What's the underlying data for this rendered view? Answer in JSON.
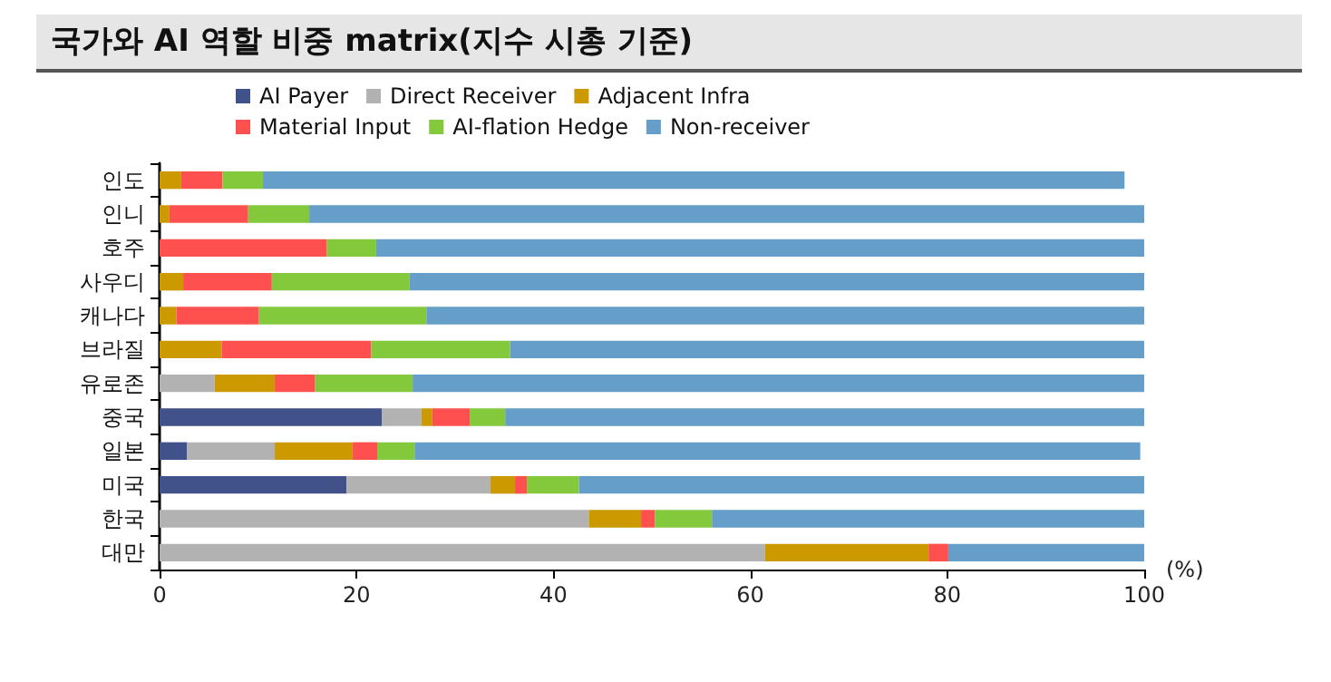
{
  "chart_data": {
    "type": "bar",
    "title": "국가와 AI 역할 비중 matrix(지수 시총 기준)",
    "xlabel": "(%)",
    "orientation": "horizontal",
    "stacked": true,
    "legend": "top",
    "grid": false,
    "categories": [
      "인도",
      "인니",
      "호주",
      "사우디",
      "캐나다",
      "브라질",
      "유로존",
      "중국",
      "일본",
      "미국",
      "한국",
      "대만"
    ],
    "xlim": [
      0,
      100
    ],
    "xticks": [
      0,
      20,
      40,
      60,
      80,
      100
    ],
    "series": [
      {
        "name": "AI Payer",
        "color": "#41528a",
        "values": [
          0,
          0,
          0,
          0,
          0,
          0,
          0,
          22.6,
          2.8,
          19.0,
          0,
          0
        ]
      },
      {
        "name": "Direct Receiver",
        "color": "#b2b2b2",
        "values": [
          0,
          0,
          0,
          0,
          0,
          0,
          5.6,
          4.0,
          8.9,
          14.6,
          43.6,
          61.5
        ]
      },
      {
        "name": "Adjacent Infra",
        "color": "#cc9900",
        "values": [
          2.2,
          1.0,
          0,
          2.4,
          1.7,
          6.3,
          6.1,
          1.1,
          7.9,
          2.5,
          5.3,
          16.6
        ]
      },
      {
        "name": "Material Input",
        "color": "#ff5050",
        "values": [
          4.2,
          8.0,
          17.0,
          9.0,
          8.4,
          15.2,
          4.1,
          3.8,
          2.5,
          1.2,
          1.4,
          2.0
        ]
      },
      {
        "name": "AI-flation Hedge",
        "color": "#84c83c",
        "values": [
          4.1,
          6.2,
          5.0,
          14.0,
          17.0,
          14.1,
          9.9,
          3.6,
          3.8,
          5.3,
          5.8,
          0
        ]
      },
      {
        "name": "Non-receiver",
        "color": "#659ec9",
        "values": [
          87.5,
          84.8,
          78.0,
          75.0,
          72.9,
          64.4,
          74.3,
          64.9,
          73.7,
          57.4,
          43.9,
          19.9
        ]
      }
    ]
  }
}
